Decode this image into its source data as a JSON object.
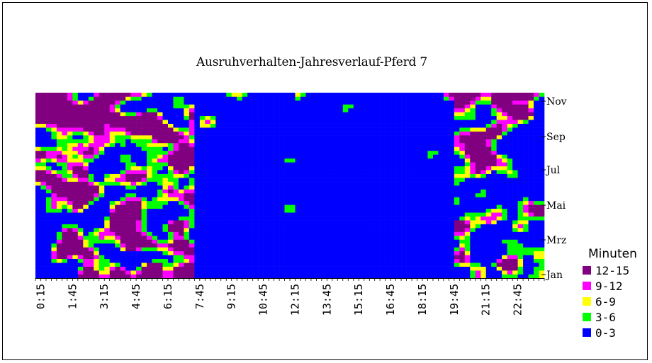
{
  "chart_data": {
    "type": "heatmap",
    "title": "Ausruhverhalten-Jahresverlauf-Pferd 7",
    "legend_title": "Minuten",
    "legend_placement": "right",
    "x_tick_labels": [
      "0:15",
      "1:45",
      "3:15",
      "4:45",
      "6:15",
      "7:45",
      "9:15",
      "10:45",
      "12:15",
      "13:45",
      "15:15",
      "16:45",
      "18:15",
      "19:45",
      "21:15",
      "22:45"
    ],
    "y_tick_labels": [
      "Jan",
      "Mrz",
      "Mai",
      "Jul",
      "Sep",
      "Nov"
    ],
    "x_range": [
      "0:00",
      "24:00"
    ],
    "y_range": [
      "Jan",
      "Dez"
    ],
    "legend": [
      {
        "label": "12-15",
        "color": "#800080"
      },
      {
        "label": "9-12",
        "color": "#ff00ff"
      },
      {
        "label": "6-9",
        "color": "#ffff00"
      },
      {
        "label": "3-6",
        "color": "#00ff00"
      },
      {
        "label": "0-3",
        "color": "#0000ff"
      }
    ],
    "grid": false,
    "unit": "Minuten per 15-min interval",
    "note_values": "Irregular contour patches; dense resting activity near 0:15-7:00 and 19:00-24:00, sparse at midday."
  }
}
